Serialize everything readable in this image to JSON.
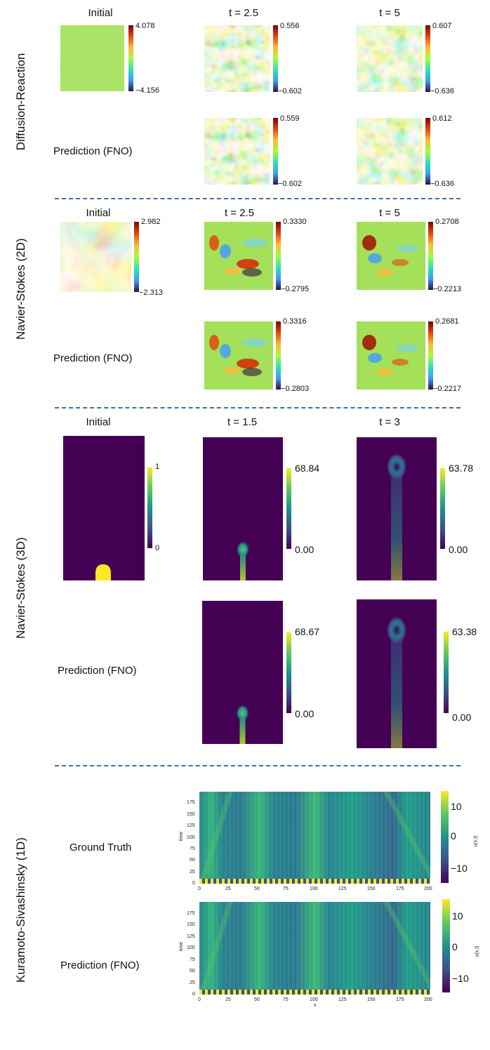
{
  "sections": {
    "dr": {
      "row_label": "Diffusion-Reaction",
      "col_titles": [
        "Initial",
        "t = 2.5",
        "t = 5"
      ],
      "pred_label": "Prediction (FNO)",
      "colorbars": {
        "initial": [
          "4.078",
          "−4.156"
        ],
        "gt_t1": [
          "0.556",
          "−0.602"
        ],
        "gt_t2": [
          "0.607",
          "−0.636"
        ],
        "pred_t1": [
          "0.559",
          "−0.602"
        ],
        "pred_t2": [
          "0.612",
          "−0.636"
        ]
      }
    },
    "ns2d": {
      "row_label": "Navier-Stokes (2D)",
      "col_titles": [
        "Initial",
        "t = 2.5",
        "t = 5"
      ],
      "pred_label": "Prediction (FNO)",
      "colorbars": {
        "initial": [
          "2.982",
          "−2.313"
        ],
        "gt_t1": [
          "0.3330",
          "−0.2795"
        ],
        "gt_t2": [
          "0.2708",
          "−0.2213"
        ],
        "pred_t1": [
          "0.3316",
          "−0.2803"
        ],
        "pred_t2": [
          "0.2681",
          "−0.2217"
        ]
      }
    },
    "ns3d": {
      "row_label": "Navier-Stokes (3D)",
      "col_titles": [
        "Initial",
        "t = 1.5",
        "t = 3"
      ],
      "pred_label": "Prediction (FNO)",
      "colorbars": {
        "initial": [
          "1",
          "0"
        ],
        "gt_t1": [
          "68.84",
          "0.00"
        ],
        "gt_t2": [
          "63.78",
          "0.00"
        ],
        "pred_t1": [
          "68.67",
          "0.00"
        ],
        "pred_t2": [
          "63.38",
          "0.00"
        ]
      }
    },
    "ks": {
      "row_label": "Kuramoto-Sivashinsky (1D)",
      "gt_label": "Ground Truth",
      "pred_label": "Prediction (FNO)",
      "y_axis_label": "time",
      "x_axis_label": "x",
      "colorbar_label": "u(x,t)",
      "y_ticks": [
        "175",
        "150",
        "125",
        "100",
        "75",
        "50",
        "25",
        "0"
      ],
      "x_ticks": [
        "0",
        "25",
        "50",
        "75",
        "100",
        "125",
        "150",
        "175",
        "200"
      ],
      "cb_ticks": [
        "10",
        "0",
        "−10"
      ]
    }
  },
  "colors": {
    "divider": "#3d6fa3",
    "viridis_dark": "#440154",
    "viridis_bright": "#fde725",
    "ks_base": "#26828e"
  }
}
